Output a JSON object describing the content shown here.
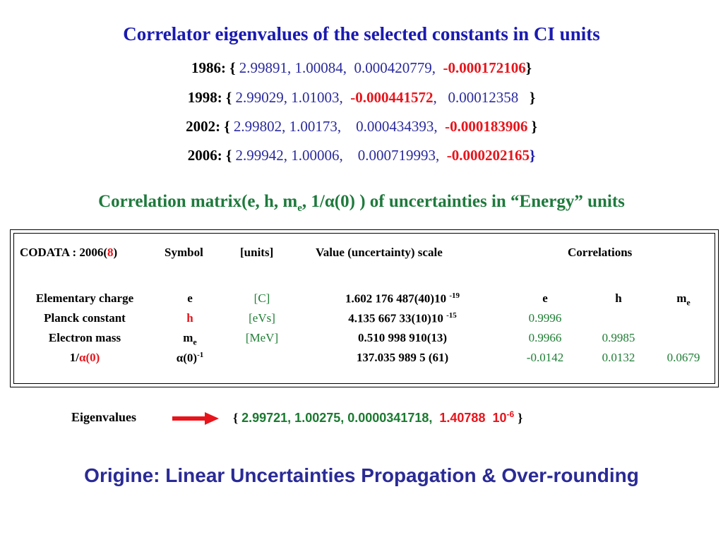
{
  "title": "Correlator eigenvalues of the selected constants in CI units",
  "years": [
    {
      "year": "1986:",
      "v1": "2.99891,",
      "v2": "1.00084,",
      "v3": "0.000420779,",
      "neg": "-0.000172106"
    },
    {
      "year": "1998:",
      "v1": "2.99029,",
      "v2": "1.01003,",
      "neg": "-0.000441572",
      "v3": "0.00012358"
    },
    {
      "year": "2002:",
      "v1": "2.99802,",
      "v2": "1.00173,",
      "v3": "0.000434393,",
      "neg": "-0.000183906"
    },
    {
      "year": "2006:",
      "v1": "2.99942,",
      "v2": "1.00006,",
      "v3": "0.000719993,",
      "neg": "-0.000202165"
    }
  ],
  "subtitle": {
    "pre": "Correlation matrix(e,  h, m",
    "sub": "e",
    "post": ", 1/α(0) ) of uncertainties in “Energy” units"
  },
  "table": {
    "header": {
      "codata_pre": "CODATA : 2006(",
      "codata_num": "8",
      "codata_post": ")",
      "symbol": "Symbol",
      "units": "[units]",
      "value": "Value (uncertainty)  scale",
      "correlations": "Correlations"
    },
    "corr_headers": {
      "e": "e",
      "h": "h",
      "me_base": "m",
      "me_sub": "e"
    },
    "rows": [
      {
        "name": "Elementary charge",
        "symbol": "e",
        "unit": "[C]",
        "value": "1.602 176 487(40)10",
        "exp": "-19",
        "c1": "",
        "c2": "",
        "c3": ""
      },
      {
        "name": "Planck constant",
        "symbol": "h",
        "unit": "[eVs]",
        "value": "4.135 667 33(10)10",
        "exp": "-15",
        "c1": "0.9996",
        "c2": "",
        "c3": ""
      },
      {
        "name": "Electron mass",
        "symbol_base": "m",
        "symbol_sub": "e",
        "unit": "[MeV]",
        "value": "0.510 998 910(13)",
        "exp": "",
        "c1": "0.9966",
        "c2": "0.9985",
        "c3": ""
      },
      {
        "name_pre": "1/",
        "name_red": "α(0)",
        "symbol_base": "α(0)",
        "symbol_sup": "-1",
        "unit": "",
        "value": "137.035 989 5 (61)",
        "exp": "",
        "c1": "-0.0142",
        "c2": "0.0132",
        "c3": "0.0679"
      }
    ]
  },
  "eigen": {
    "label": "Eigenvalues",
    "open": "{",
    "values": "2.99721,  1.00275,  0.0000341718,",
    "red_val": "1.40788",
    "red_pow_base": "10",
    "red_pow_exp": "-6",
    "close": "}"
  },
  "footer": "Origine:  Linear Uncertainties Propagation  &  Over-rounding"
}
